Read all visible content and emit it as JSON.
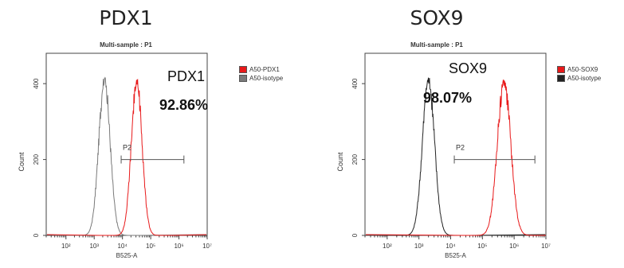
{
  "chart_data": [
    {
      "type": "line",
      "title": "PDX1",
      "subtitle": "Multi-sample : P1",
      "xlabel": "B525-A",
      "ylabel": "Count",
      "xscale": "log",
      "xlim": [
        20,
        10000000
      ],
      "ylim": [
        0,
        480
      ],
      "x_tick_labels": [
        "10²",
        "10³",
        "10⁴",
        "10⁵",
        "10⁶",
        "10⁷"
      ],
      "x_ticks": [
        100,
        1000,
        10000,
        100000,
        1000000,
        10000000
      ],
      "y_tick_labels": [
        "0",
        "200",
        "400"
      ],
      "y_ticks": [
        0,
        200,
        400
      ],
      "legend_position": "top-right",
      "series": [
        {
          "name": "A50-PDX1",
          "color": "#e8191a",
          "peak_x": 32000,
          "peak_y": 405,
          "width": 0.19
        },
        {
          "name": "A50-isotype",
          "color": "#7a7a7a",
          "peak_x": 2300,
          "peak_y": 410,
          "width": 0.2
        }
      ],
      "gate": {
        "label": "P2",
        "x_start": 9000,
        "x_end": 1500000,
        "y": 200
      },
      "annotation_label": "PDX1",
      "annotation_value": "92.86%"
    },
    {
      "type": "line",
      "title": "SOX9",
      "subtitle": "Multi-sample : P1",
      "xlabel": "B525-A",
      "ylabel": "Count",
      "xscale": "log",
      "xlim": [
        20,
        10000000
      ],
      "ylim": [
        0,
        480
      ],
      "x_tick_labels": [
        "10²",
        "10³",
        "10⁴",
        "10⁵",
        "10⁶",
        "10⁷"
      ],
      "x_ticks": [
        100,
        1000,
        10000,
        100000,
        1000000,
        10000000
      ],
      "y_tick_labels": [
        "0",
        "200",
        "400"
      ],
      "y_ticks": [
        0,
        200,
        400
      ],
      "legend_position": "top-right",
      "series": [
        {
          "name": "A50-SOX9",
          "color": "#e8191a",
          "peak_x": 480000,
          "peak_y": 405,
          "width": 0.21
        },
        {
          "name": "A50-isotype",
          "color": "#222222",
          "peak_x": 2000,
          "peak_y": 410,
          "width": 0.19
        }
      ],
      "gate": {
        "label": "P2",
        "x_start": 13000,
        "x_end": 4500000,
        "y": 200
      },
      "annotation_label": "SOX9",
      "annotation_value": "98.07%"
    }
  ]
}
